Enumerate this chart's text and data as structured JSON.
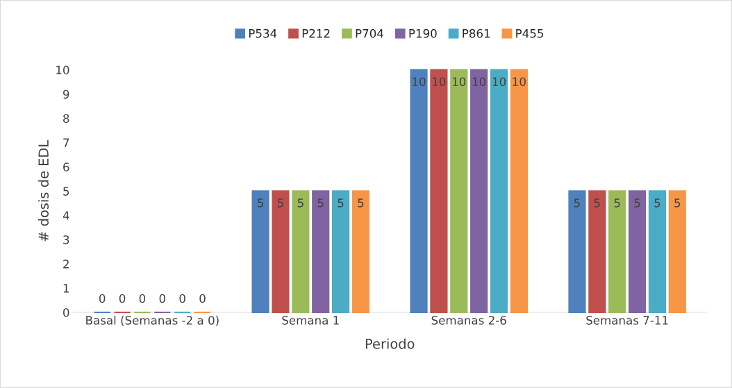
{
  "chart_data": {
    "type": "bar",
    "xlabel": "Periodo",
    "ylabel": "# dosis de EDL",
    "categories": [
      "Basal (Semanas -2 a 0)",
      "Semana 1",
      "Semanas 2-6",
      "Semanas 7-11"
    ],
    "series": [
      {
        "name": "P534",
        "color": "#4f81bd",
        "values": [
          0,
          5,
          10,
          5
        ]
      },
      {
        "name": "P212",
        "color": "#c0504d",
        "values": [
          0,
          5,
          10,
          5
        ]
      },
      {
        "name": "P704",
        "color": "#9bbb59",
        "values": [
          0,
          5,
          10,
          5
        ]
      },
      {
        "name": "P190",
        "color": "#8064a2",
        "values": [
          0,
          5,
          10,
          5
        ]
      },
      {
        "name": "P861",
        "color": "#4bacc6",
        "values": [
          0,
          5,
          10,
          5
        ]
      },
      {
        "name": "P455",
        "color": "#f79646",
        "values": [
          0,
          5,
          10,
          5
        ]
      }
    ],
    "ylim": [
      0,
      10
    ],
    "yticks": [
      0,
      1,
      2,
      3,
      4,
      5,
      6,
      7,
      8,
      9,
      10
    ],
    "data_labels": true,
    "legend": "top",
    "grid": false
  }
}
